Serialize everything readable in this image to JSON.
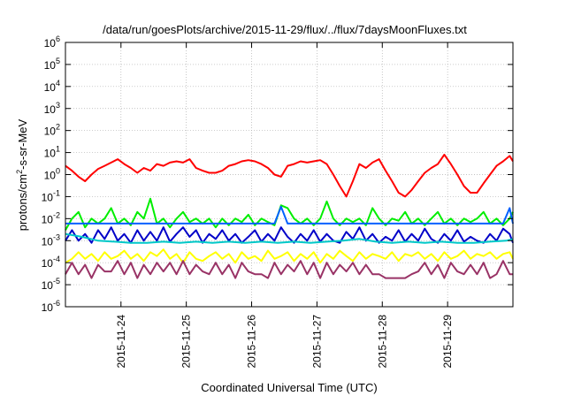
{
  "chart_data": {
    "type": "line",
    "title": "/data/run/goesPlots/archive/2015-11-29/flux/../flux/7daysMoonFluxes.txt",
    "xlabel": "Coordinated Universal Time (UTC)",
    "ylabel": {
      "base": "protons/cm",
      "sup": "2",
      "rest": "-s-sr-MeV"
    },
    "y_scale": "log",
    "ylim": [
      1e-06,
      1000000.0
    ],
    "y_ticks": [
      {
        "base": "10",
        "exp": "-6",
        "value": 1e-06
      },
      {
        "base": "10",
        "exp": "-5",
        "value": 1e-05
      },
      {
        "base": "10",
        "exp": "-4",
        "value": 0.0001
      },
      {
        "base": "10",
        "exp": "-3",
        "value": 0.001
      },
      {
        "base": "10",
        "exp": "-2",
        "value": 0.01
      },
      {
        "base": "10",
        "exp": "-1",
        "value": 0.1
      },
      {
        "base": "10",
        "exp": "0",
        "value": 1
      },
      {
        "base": "10",
        "exp": "1",
        "value": 10
      },
      {
        "base": "10",
        "exp": "2",
        "value": 100
      },
      {
        "base": "10",
        "exp": "3",
        "value": 1000
      },
      {
        "base": "10",
        "exp": "4",
        "value": 10000
      },
      {
        "base": "10",
        "exp": "5",
        "value": 100000
      },
      {
        "base": "10",
        "exp": "6",
        "value": 1000000
      }
    ],
    "x_range_days": [
      -0.85,
      6.0
    ],
    "x_ticks": [
      {
        "label": "2015-11-24",
        "day": 0
      },
      {
        "label": "2015-11-25",
        "day": 1
      },
      {
        "label": "2015-11-26",
        "day": 2
      },
      {
        "label": "2015-11-27",
        "day": 3
      },
      {
        "label": "2015-11-28",
        "day": 4
      },
      {
        "label": "2015-11-29",
        "day": 5
      }
    ],
    "grid": true,
    "series": [
      {
        "color": "#ff0000",
        "x": [
          -0.85,
          -0.75,
          -0.65,
          -0.55,
          -0.45,
          -0.35,
          -0.25,
          -0.15,
          -0.05,
          0.05,
          0.15,
          0.25,
          0.35,
          0.45,
          0.55,
          0.65,
          0.75,
          0.85,
          0.95,
          1.05,
          1.15,
          1.25,
          1.35,
          1.45,
          1.55,
          1.65,
          1.75,
          1.85,
          1.95,
          2.05,
          2.15,
          2.25,
          2.35,
          2.45,
          2.55,
          2.65,
          2.75,
          2.85,
          2.95,
          3.05,
          3.15,
          3.25,
          3.35,
          3.45,
          3.55,
          3.65,
          3.75,
          3.85,
          3.95,
          4.05,
          4.15,
          4.25,
          4.35,
          4.45,
          4.55,
          4.65,
          4.75,
          4.85,
          4.95,
          5.05,
          5.15,
          5.25,
          5.35,
          5.45,
          5.55,
          5.65,
          5.75,
          5.85,
          5.95,
          6.0
        ],
        "y": [
          2.5,
          1.5,
          0.8,
          0.5,
          1,
          1.8,
          2.5,
          3.5,
          5,
          3,
          2,
          1.2,
          2,
          1.5,
          3,
          2.5,
          3.5,
          4,
          3.5,
          5,
          2,
          1.5,
          1.2,
          1.2,
          1.5,
          2.5,
          3,
          4,
          4.5,
          4,
          3,
          2,
          1,
          0.8,
          2.5,
          3,
          4,
          3.5,
          4,
          4.5,
          3,
          1,
          0.3,
          0.1,
          0.5,
          3,
          2,
          3.5,
          5,
          1.5,
          0.5,
          0.15,
          0.1,
          0.2,
          0.5,
          1.2,
          2,
          3,
          8,
          3,
          1,
          0.3,
          0.15,
          0.15,
          0.4,
          1,
          2.5,
          4,
          7,
          4
        ]
      },
      {
        "color": "#00ee00",
        "x": [
          -0.85,
          -0.75,
          -0.65,
          -0.55,
          -0.45,
          -0.35,
          -0.25,
          -0.15,
          -0.05,
          0.05,
          0.15,
          0.25,
          0.35,
          0.45,
          0.55,
          0.65,
          0.75,
          0.85,
          0.95,
          1.05,
          1.15,
          1.25,
          1.35,
          1.45,
          1.55,
          1.65,
          1.75,
          1.85,
          1.95,
          2.05,
          2.15,
          2.25,
          2.35,
          2.45,
          2.55,
          2.65,
          2.75,
          2.85,
          2.95,
          3.05,
          3.15,
          3.25,
          3.35,
          3.45,
          3.55,
          3.65,
          3.75,
          3.85,
          3.95,
          4.05,
          4.15,
          4.25,
          4.35,
          4.45,
          4.55,
          4.65,
          4.75,
          4.85,
          4.95,
          5.05,
          5.15,
          5.25,
          5.35,
          5.45,
          5.55,
          5.65,
          5.75,
          5.85,
          5.95,
          6.0
        ],
        "y": [
          0.003,
          0.01,
          0.02,
          0.004,
          0.01,
          0.006,
          0.01,
          0.03,
          0.006,
          0.01,
          0.005,
          0.02,
          0.01,
          0.08,
          0.006,
          0.01,
          0.004,
          0.01,
          0.02,
          0.007,
          0.01,
          0.006,
          0.01,
          0.004,
          0.01,
          0.005,
          0.01,
          0.007,
          0.015,
          0.005,
          0.01,
          0.007,
          0.005,
          0.04,
          0.03,
          0.01,
          0.006,
          0.01,
          0.005,
          0.01,
          0.06,
          0.01,
          0.005,
          0.01,
          0.007,
          0.01,
          0.005,
          0.03,
          0.01,
          0.005,
          0.01,
          0.008,
          0.02,
          0.006,
          0.01,
          0.005,
          0.01,
          0.02,
          0.006,
          0.01,
          0.005,
          0.01,
          0.007,
          0.01,
          0.02,
          0.006,
          0.01,
          0.005,
          0.01,
          0.02
        ]
      },
      {
        "color": "#0060ff",
        "x": [
          -0.85,
          -0.75,
          -0.65,
          -0.55,
          -0.45,
          -0.35,
          -0.25,
          -0.15,
          -0.05,
          0.05,
          0.15,
          0.25,
          0.35,
          0.45,
          0.55,
          0.65,
          0.75,
          0.85,
          0.95,
          1.05,
          1.15,
          1.25,
          1.35,
          1.45,
          1.55,
          1.65,
          1.75,
          1.85,
          1.95,
          2.05,
          2.15,
          2.25,
          2.35,
          2.45,
          2.55,
          2.65,
          2.75,
          2.85,
          2.95,
          3.05,
          3.15,
          3.25,
          3.35,
          3.45,
          3.55,
          3.65,
          3.75,
          3.85,
          3.95,
          4.05,
          4.15,
          4.25,
          4.35,
          4.45,
          4.55,
          4.65,
          4.75,
          4.85,
          4.95,
          5.05,
          5.15,
          5.25,
          5.35,
          5.45,
          5.55,
          5.65,
          5.75,
          5.85,
          5.95,
          6.0
        ],
        "y": [
          0.006,
          0.006,
          0.006,
          0.006,
          0.006,
          0.006,
          0.006,
          0.006,
          0.006,
          0.006,
          0.006,
          0.006,
          0.006,
          0.006,
          0.006,
          0.006,
          0.006,
          0.006,
          0.006,
          0.006,
          0.006,
          0.006,
          0.006,
          0.006,
          0.006,
          0.006,
          0.006,
          0.006,
          0.006,
          0.006,
          0.006,
          0.006,
          0.006,
          0.035,
          0.006,
          0.006,
          0.006,
          0.006,
          0.006,
          0.006,
          0.006,
          0.006,
          0.006,
          0.006,
          0.006,
          0.006,
          0.006,
          0.006,
          0.006,
          0.006,
          0.006,
          0.006,
          0.006,
          0.006,
          0.006,
          0.006,
          0.006,
          0.006,
          0.006,
          0.006,
          0.006,
          0.006,
          0.006,
          0.006,
          0.006,
          0.006,
          0.006,
          0.006,
          0.03,
          0.006
        ]
      },
      {
        "color": "#0000c8",
        "x": [
          -0.85,
          -0.75,
          -0.65,
          -0.55,
          -0.45,
          -0.35,
          -0.25,
          -0.15,
          -0.05,
          0.05,
          0.15,
          0.25,
          0.35,
          0.45,
          0.55,
          0.65,
          0.75,
          0.85,
          0.95,
          1.05,
          1.15,
          1.25,
          1.35,
          1.45,
          1.55,
          1.65,
          1.75,
          1.85,
          1.95,
          2.05,
          2.15,
          2.25,
          2.35,
          2.45,
          2.55,
          2.65,
          2.75,
          2.85,
          2.95,
          3.05,
          3.15,
          3.25,
          3.35,
          3.45,
          3.55,
          3.65,
          3.75,
          3.85,
          3.95,
          4.05,
          4.15,
          4.25,
          4.35,
          4.45,
          4.55,
          4.65,
          4.75,
          4.85,
          4.95,
          5.05,
          5.15,
          5.25,
          5.35,
          5.45,
          5.55,
          5.65,
          5.75,
          5.85,
          5.95,
          6.0
        ],
        "y": [
          0.001,
          0.003,
          0.001,
          0.002,
          0.0008,
          0.003,
          0.0012,
          0.004,
          0.001,
          0.002,
          0.0008,
          0.003,
          0.001,
          0.0025,
          0.001,
          0.004,
          0.0009,
          0.002,
          0.004,
          0.0015,
          0.003,
          0.0008,
          0.002,
          0.0012,
          0.003,
          0.001,
          0.002,
          0.0008,
          0.0015,
          0.003,
          0.0009,
          0.002,
          0.001,
          0.004,
          0.0015,
          0.0008,
          0.002,
          0.001,
          0.003,
          0.0009,
          0.002,
          0.001,
          0.0008,
          0.0025,
          0.0012,
          0.004,
          0.001,
          0.002,
          0.0008,
          0.0015,
          0.001,
          0.003,
          0.0009,
          0.002,
          0.001,
          0.0035,
          0.0012,
          0.0008,
          0.002,
          0.001,
          0.003,
          0.0009,
          0.0015,
          0.001,
          0.0008,
          0.002,
          0.001,
          0.0035,
          0.002,
          0.0008
        ]
      },
      {
        "color": "#00c8c8",
        "x": [
          -0.85,
          -0.6,
          -0.35,
          -0.1,
          0.15,
          0.4,
          0.65,
          0.9,
          1.15,
          1.4,
          1.65,
          1.9,
          2.15,
          2.4,
          2.65,
          2.9,
          3.15,
          3.4,
          3.65,
          3.9,
          4.15,
          4.4,
          4.65,
          4.9,
          5.15,
          5.4,
          5.65,
          5.9,
          6.0
        ],
        "y": [
          0.002,
          0.0015,
          0.001,
          0.0009,
          0.0008,
          0.0008,
          0.0009,
          0.0008,
          0.0009,
          0.0008,
          0.0009,
          0.0008,
          0.0009,
          0.0008,
          0.0009,
          0.0008,
          0.0009,
          0.001,
          0.0012,
          0.0009,
          0.0008,
          0.0009,
          0.0008,
          0.0009,
          0.0008,
          0.0008,
          0.0009,
          0.001,
          0.0012
        ]
      },
      {
        "color": "#ffff00",
        "x": [
          -0.85,
          -0.75,
          -0.65,
          -0.55,
          -0.45,
          -0.35,
          -0.25,
          -0.15,
          -0.05,
          0.05,
          0.15,
          0.25,
          0.35,
          0.45,
          0.55,
          0.65,
          0.75,
          0.85,
          0.95,
          1.05,
          1.15,
          1.25,
          1.35,
          1.45,
          1.55,
          1.65,
          1.75,
          1.85,
          1.95,
          2.05,
          2.15,
          2.25,
          2.35,
          2.45,
          2.55,
          2.65,
          2.75,
          2.85,
          2.95,
          3.05,
          3.15,
          3.25,
          3.35,
          3.45,
          3.55,
          3.65,
          3.75,
          3.85,
          3.95,
          4.05,
          4.15,
          4.25,
          4.35,
          4.45,
          4.55,
          4.65,
          4.75,
          4.85,
          4.95,
          5.05,
          5.15,
          5.25,
          5.35,
          5.45,
          5.55,
          5.65,
          5.75,
          5.85,
          5.95,
          6.0
        ],
        "y": [
          0.0001,
          0.00015,
          0.0003,
          0.00015,
          0.00025,
          0.00012,
          0.0003,
          0.00015,
          0.0002,
          0.00035,
          0.00015,
          0.00025,
          0.00012,
          0.0003,
          0.0002,
          0.0004,
          0.00015,
          0.00025,
          0.0001,
          0.0003,
          0.00015,
          0.00012,
          0.0002,
          0.0003,
          0.00015,
          0.00025,
          0.0001,
          0.0003,
          0.00015,
          0.0002,
          0.00012,
          0.00035,
          0.00015,
          0.0002,
          0.0003,
          0.00012,
          0.00025,
          0.00015,
          0.0003,
          0.0001,
          0.00025,
          0.00015,
          0.00035,
          0.0002,
          0.00012,
          0.0003,
          0.00015,
          0.00025,
          0.0002,
          0.00015,
          0.0003,
          0.00012,
          0.00025,
          0.0002,
          0.0003,
          0.00015,
          0.00025,
          0.00012,
          0.0003,
          0.00015,
          0.0002,
          0.00035,
          0.00015,
          0.00025,
          0.0002,
          0.0003,
          0.00015,
          0.00025,
          0.0003,
          0.00015
        ]
      },
      {
        "color": "#993366",
        "x": [
          -0.85,
          -0.75,
          -0.65,
          -0.55,
          -0.45,
          -0.35,
          -0.25,
          -0.15,
          -0.05,
          0.05,
          0.15,
          0.25,
          0.35,
          0.45,
          0.55,
          0.65,
          0.75,
          0.85,
          0.95,
          1.05,
          1.15,
          1.25,
          1.35,
          1.45,
          1.55,
          1.65,
          1.75,
          1.85,
          1.95,
          2.05,
          2.15,
          2.25,
          2.35,
          2.45,
          2.55,
          2.65,
          2.75,
          2.85,
          2.95,
          3.05,
          3.15,
          3.25,
          3.35,
          3.45,
          3.55,
          3.65,
          3.75,
          3.85,
          3.95,
          4.05,
          4.15,
          4.25,
          4.35,
          4.45,
          4.55,
          4.65,
          4.75,
          4.85,
          4.95,
          5.05,
          5.15,
          5.25,
          5.35,
          5.45,
          5.55,
          5.65,
          5.75,
          5.85,
          5.95,
          6.0
        ],
        "y": [
          3e-05,
          0.0001,
          3e-05,
          8e-05,
          2e-05,
          8e-05,
          4e-05,
          4e-05,
          0.00012,
          3e-05,
          0.0001,
          2e-05,
          8e-05,
          3e-05,
          0.0001,
          4e-05,
          0.0001,
          3e-05,
          0.00012,
          3e-05,
          8e-05,
          4e-05,
          3e-05,
          0.0001,
          3e-05,
          8e-05,
          2e-05,
          0.0001,
          4e-05,
          3e-05,
          3e-05,
          2e-05,
          0.0001,
          3e-05,
          8e-05,
          4e-05,
          0.00012,
          3e-05,
          0.0001,
          2e-05,
          0.0001,
          3e-05,
          8e-05,
          4e-05,
          0.0001,
          3e-05,
          8e-05,
          3e-05,
          3e-05,
          2e-05,
          2e-05,
          2e-05,
          2e-05,
          3e-05,
          4e-05,
          0.0001,
          3e-05,
          8e-05,
          2e-05,
          0.0001,
          4e-05,
          3e-05,
          8e-05,
          3e-05,
          0.0001,
          2e-05,
          3e-05,
          0.00012,
          3e-05,
          3e-05
        ]
      }
    ]
  }
}
